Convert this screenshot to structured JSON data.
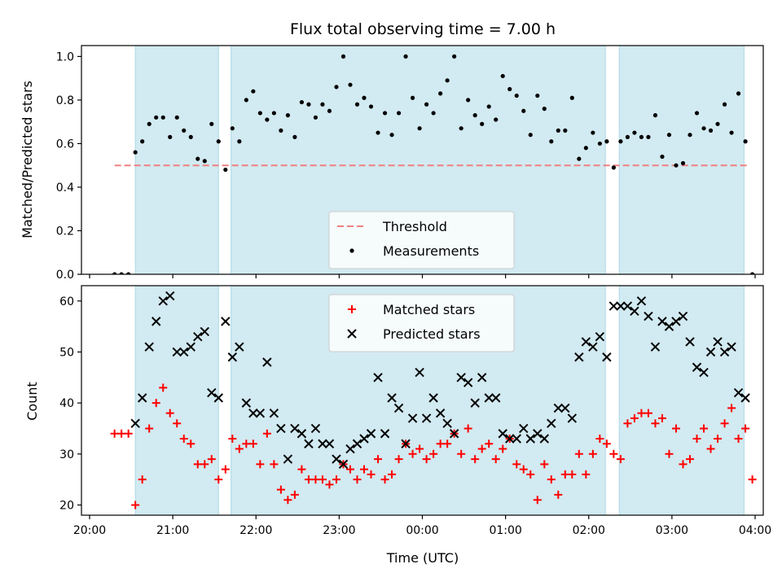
{
  "chart_data": [
    {
      "type": "scatter",
      "title": "Flux total observing time = 7.00 h",
      "xlabel": "",
      "ylabel": "Matched/Predicted stars",
      "xlim": [
        "20:00",
        "04:00"
      ],
      "ylim": [
        0,
        1.05
      ],
      "yticks": [
        0.0,
        0.2,
        0.4,
        0.6,
        0.8,
        1.0
      ],
      "ytick_labels": [
        "0.0",
        "0.2",
        "0.4",
        "0.6",
        "0.8",
        "1.0"
      ],
      "shaded_intervals": [
        [
          "20:33",
          "21:33"
        ],
        [
          "21:42",
          "02:12"
        ],
        [
          "02:22",
          "03:52"
        ]
      ],
      "shade_color": "#add8e6",
      "legend": {
        "position": "lower-center",
        "entries": [
          "Threshold",
          "Measurements"
        ]
      },
      "threshold": {
        "name": "Threshold",
        "value": 0.5,
        "x_range": [
          "20:18",
          "03:54"
        ],
        "color": "#f08080",
        "style": "dashed"
      },
      "series": [
        {
          "name": "Measurements",
          "marker": "dot",
          "color": "#000000",
          "x": [
            "20:18",
            "20:23",
            "20:28",
            "20:33",
            "20:38",
            "20:43",
            "20:48",
            "20:53",
            "20:58",
            "21:03",
            "21:08",
            "21:13",
            "21:18",
            "21:23",
            "21:28",
            "21:33",
            "21:38",
            "21:43",
            "21:48",
            "21:53",
            "21:58",
            "22:03",
            "22:08",
            "22:13",
            "22:18",
            "22:23",
            "22:28",
            "22:33",
            "22:38",
            "22:43",
            "22:48",
            "22:53",
            "22:58",
            "23:03",
            "23:08",
            "23:13",
            "23:18",
            "23:23",
            "23:28",
            "23:33",
            "23:38",
            "23:43",
            "23:48",
            "23:53",
            "23:58",
            "00:03",
            "00:08",
            "00:13",
            "00:18",
            "00:23",
            "00:28",
            "00:33",
            "00:38",
            "00:43",
            "00:48",
            "00:53",
            "00:58",
            "01:03",
            "01:08",
            "01:13",
            "01:18",
            "01:23",
            "01:28",
            "01:33",
            "01:38",
            "01:43",
            "01:48",
            "01:53",
            "01:58",
            "02:03",
            "02:08",
            "02:13",
            "02:18",
            "02:23",
            "02:28",
            "02:33",
            "02:38",
            "02:43",
            "02:48",
            "02:53",
            "02:58",
            "03:03",
            "03:08",
            "03:13",
            "03:18",
            "03:23",
            "03:28",
            "03:33",
            "03:38",
            "03:43",
            "03:48",
            "03:53",
            "03:58"
          ],
          "y": [
            0.0,
            0.0,
            0.0,
            0.56,
            0.61,
            0.69,
            0.72,
            0.72,
            0.63,
            0.72,
            0.66,
            0.63,
            0.53,
            0.52,
            0.69,
            0.61,
            0.48,
            0.67,
            0.61,
            0.8,
            0.84,
            0.74,
            0.71,
            0.74,
            0.66,
            0.73,
            0.63,
            0.79,
            0.78,
            0.72,
            0.78,
            0.75,
            0.86,
            1.0,
            0.87,
            0.78,
            0.81,
            0.77,
            0.65,
            0.74,
            0.64,
            0.74,
            1.0,
            0.81,
            0.67,
            0.78,
            0.74,
            0.83,
            0.89,
            1.0,
            0.67,
            0.8,
            0.73,
            0.69,
            0.77,
            0.71,
            0.91,
            0.85,
            0.82,
            0.75,
            0.64,
            0.82,
            0.76,
            0.61,
            0.66,
            0.66,
            0.81,
            0.53,
            0.58,
            0.65,
            0.6,
            0.61,
            0.49,
            0.61,
            0.63,
            0.65,
            0.63,
            0.63,
            0.73,
            0.54,
            0.64,
            0.5,
            0.51,
            0.64,
            0.74,
            0.67,
            0.66,
            0.69,
            0.78,
            0.65,
            0.83,
            0.61,
            0.0
          ]
        }
      ]
    },
    {
      "type": "scatter",
      "title": "",
      "xlabel": "Time (UTC)",
      "ylabel": "Count",
      "xlim": [
        "20:00",
        "04:00"
      ],
      "ylim": [
        18,
        63
      ],
      "yticks": [
        20,
        30,
        40,
        50,
        60
      ],
      "ytick_labels": [
        "20",
        "30",
        "40",
        "50",
        "60"
      ],
      "xticks": [
        "20:00",
        "21:00",
        "22:00",
        "23:00",
        "00:00",
        "01:00",
        "02:00",
        "03:00",
        "04:00"
      ],
      "shaded_intervals": [
        [
          "20:33",
          "21:33"
        ],
        [
          "21:42",
          "02:12"
        ],
        [
          "02:22",
          "03:52"
        ]
      ],
      "shade_color": "#add8e6",
      "legend": {
        "position": "upper-center",
        "entries": [
          "Matched stars",
          "Predicted stars"
        ]
      },
      "series": [
        {
          "name": "Matched stars",
          "marker": "plus",
          "color": "#ff0000",
          "x": [
            "20:18",
            "20:23",
            "20:28",
            "20:33",
            "20:38",
            "20:43",
            "20:48",
            "20:53",
            "20:58",
            "21:03",
            "21:08",
            "21:13",
            "21:18",
            "21:23",
            "21:28",
            "21:33",
            "21:38",
            "21:43",
            "21:48",
            "21:53",
            "21:58",
            "22:03",
            "22:08",
            "22:13",
            "22:18",
            "22:23",
            "22:28",
            "22:33",
            "22:38",
            "22:43",
            "22:48",
            "22:53",
            "22:58",
            "23:03",
            "23:08",
            "23:13",
            "23:18",
            "23:23",
            "23:28",
            "23:33",
            "23:38",
            "23:43",
            "23:48",
            "23:53",
            "23:58",
            "00:03",
            "00:08",
            "00:13",
            "00:18",
            "00:23",
            "00:28",
            "00:33",
            "00:38",
            "00:43",
            "00:48",
            "00:53",
            "00:58",
            "01:03",
            "01:08",
            "01:13",
            "01:18",
            "01:23",
            "01:28",
            "01:33",
            "01:38",
            "01:43",
            "01:48",
            "01:53",
            "01:58",
            "02:03",
            "02:08",
            "02:13",
            "02:18",
            "02:23",
            "02:28",
            "02:33",
            "02:38",
            "02:43",
            "02:48",
            "02:53",
            "02:58",
            "03:03",
            "03:08",
            "03:13",
            "03:18",
            "03:23",
            "03:28",
            "03:33",
            "03:38",
            "03:43",
            "03:48",
            "03:53",
            "03:58"
          ],
          "y": [
            34,
            34,
            34,
            20,
            25,
            35,
            40,
            43,
            38,
            36,
            33,
            32,
            28,
            28,
            29,
            25,
            27,
            33,
            31,
            32,
            32,
            28,
            34,
            28,
            23,
            21,
            22,
            27,
            25,
            25,
            25,
            24,
            25,
            28,
            27,
            25,
            27,
            26,
            29,
            25,
            26,
            29,
            32,
            30,
            31,
            29,
            30,
            32,
            32,
            34,
            30,
            35,
            29,
            31,
            32,
            29,
            31,
            33,
            28,
            27,
            26,
            21,
            28,
            25,
            22,
            26,
            26,
            30,
            26,
            30,
            33,
            32,
            30,
            29,
            36,
            37,
            38,
            38,
            36,
            37,
            30,
            35,
            28,
            29,
            33,
            35,
            31,
            33,
            36,
            39,
            33,
            35,
            25
          ]
        },
        {
          "name": "Predicted stars",
          "marker": "x",
          "color": "#000000",
          "x": [
            "20:33",
            "20:38",
            "20:43",
            "20:48",
            "20:53",
            "20:58",
            "21:03",
            "21:08",
            "21:13",
            "21:18",
            "21:23",
            "21:28",
            "21:33",
            "21:38",
            "21:43",
            "21:48",
            "21:53",
            "21:58",
            "22:03",
            "22:08",
            "22:13",
            "22:18",
            "22:23",
            "22:28",
            "22:33",
            "22:38",
            "22:43",
            "22:48",
            "22:53",
            "22:58",
            "23:03",
            "23:08",
            "23:13",
            "23:18",
            "23:23",
            "23:28",
            "23:33",
            "23:38",
            "23:43",
            "23:48",
            "23:53",
            "23:58",
            "00:03",
            "00:08",
            "00:13",
            "00:18",
            "00:23",
            "00:28",
            "00:33",
            "00:38",
            "00:43",
            "00:48",
            "00:53",
            "00:58",
            "01:03",
            "01:08",
            "01:13",
            "01:18",
            "01:23",
            "01:28",
            "01:33",
            "01:38",
            "01:43",
            "01:48",
            "01:53",
            "01:58",
            "02:03",
            "02:08",
            "02:13",
            "02:18",
            "02:23",
            "02:28",
            "02:33",
            "02:38",
            "02:43",
            "02:48",
            "02:53",
            "02:58",
            "03:03",
            "03:08",
            "03:13",
            "03:18",
            "03:23",
            "03:28",
            "03:33",
            "03:38",
            "03:43",
            "03:48",
            "03:53"
          ],
          "y": [
            36,
            41,
            51,
            56,
            60,
            61,
            50,
            50,
            51,
            53,
            54,
            42,
            41,
            56,
            49,
            51,
            40,
            38,
            38,
            48,
            38,
            35,
            29,
            35,
            34,
            32,
            35,
            32,
            32,
            29,
            28,
            31,
            32,
            33,
            34,
            45,
            34,
            41,
            39,
            32,
            37,
            46,
            37,
            41,
            38,
            36,
            34,
            45,
            44,
            40,
            45,
            41,
            41,
            34,
            33,
            33,
            35,
            33,
            34,
            33,
            36,
            39,
            39,
            37,
            49,
            52,
            51,
            53,
            49,
            59,
            59,
            59,
            58,
            60,
            57,
            51,
            56,
            55,
            56,
            57,
            52,
            47,
            46,
            50,
            52,
            50,
            51,
            42,
            41
          ]
        }
      ]
    }
  ]
}
